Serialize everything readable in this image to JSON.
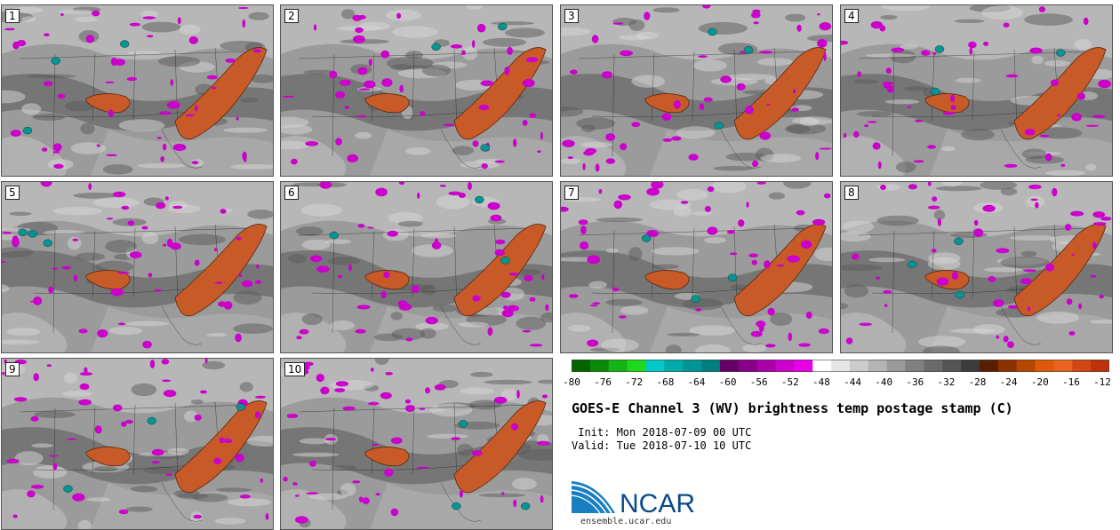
{
  "panels": [
    {
      "label": "1"
    },
    {
      "label": "2"
    },
    {
      "label": "3"
    },
    {
      "label": "4"
    },
    {
      "label": "5"
    },
    {
      "label": "6"
    },
    {
      "label": "7"
    },
    {
      "label": "8"
    },
    {
      "label": "9"
    },
    {
      "label": "10"
    }
  ],
  "colorbar": {
    "ticks": [
      "-80",
      "-76",
      "-72",
      "-68",
      "-64",
      "-60",
      "-56",
      "-52",
      "-48",
      "-44",
      "-40",
      "-36",
      "-32",
      "-28",
      "-24",
      "-20",
      "-16",
      "-12"
    ],
    "colors": [
      "#006400",
      "#0a8a0a",
      "#14b414",
      "#1ed81e",
      "#00c8c8",
      "#00aaaa",
      "#009696",
      "#007f7f",
      "#660066",
      "#880088",
      "#aa00aa",
      "#cc00cc",
      "#e600e6",
      "#ffffff",
      "#e6e6e6",
      "#cccccc",
      "#b4b4b4",
      "#9a9a9a",
      "#808080",
      "#6a6a6a",
      "#545454",
      "#3c3c3c",
      "#5a1e00",
      "#8c3200",
      "#b44600",
      "#dc5a0a",
      "#e6641e",
      "#d24614",
      "#be320a"
    ]
  },
  "title": "GOES-E Channel 3 (WV) brightness temp postage stamp (C)",
  "init_text": " Init: Mon 2018-07-09 00 UTC",
  "valid_text": "Valid: Tue 2018-07-10 10 UTC",
  "logo": {
    "text": "NCAR",
    "url": "ensemble.ucar.edu"
  }
}
